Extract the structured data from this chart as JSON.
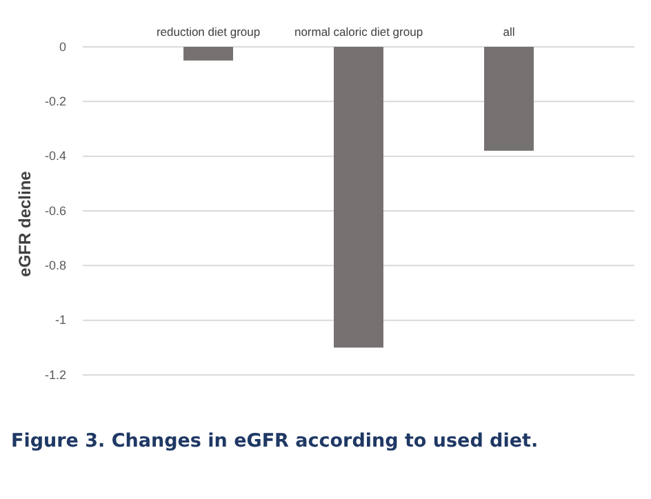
{
  "chart_data": {
    "type": "bar",
    "ylabel": "eGFR decline",
    "categories": [
      "reduction diet group",
      "normal caloric diet group",
      "all"
    ],
    "values": [
      -0.05,
      -1.1,
      -0.38
    ],
    "color": "#767171",
    "ylim": [
      -1.2,
      0
    ],
    "yticks": [
      0,
      -0.2,
      -0.4,
      -0.6,
      -0.8,
      -1,
      -1.2
    ],
    "grid": "y",
    "annotations": [
      "Figure 3. Changes in eGFR according to used diet."
    ]
  }
}
